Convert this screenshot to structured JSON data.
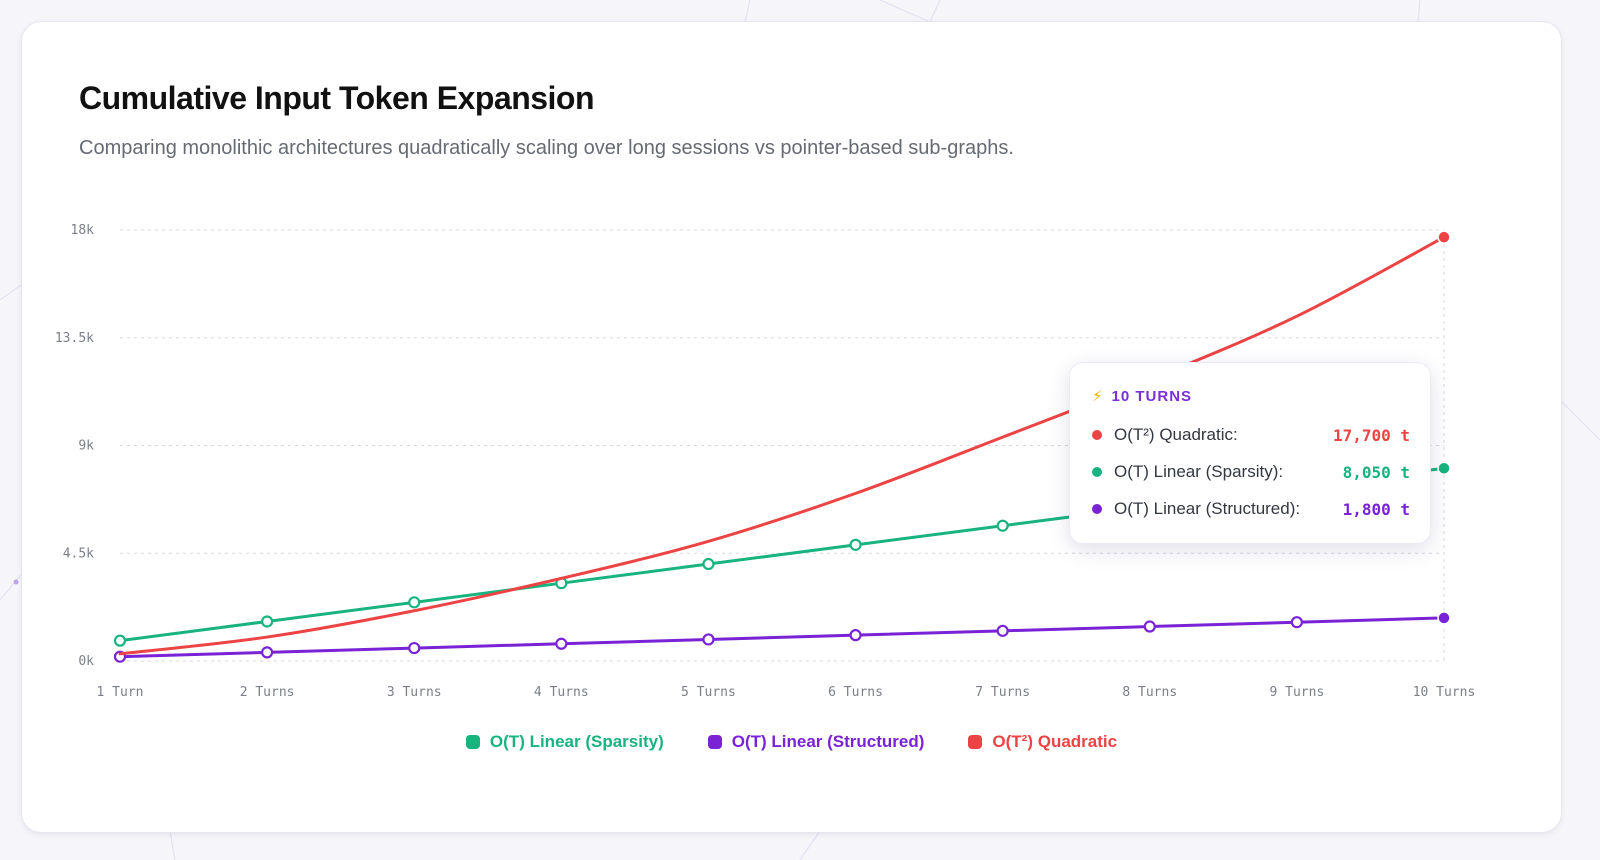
{
  "page": {
    "title": "Cumulative Input Token Expansion",
    "subtitle": "Comparing monolithic architectures quadratically scaling over long sessions vs pointer-based sub-graphs."
  },
  "colors": {
    "quadratic": "#ec4444",
    "sparsity": "#19b47e",
    "structured": "#7a22d6",
    "grid": "#d7d9df"
  },
  "chart_data": {
    "type": "line",
    "x": [
      "1 Turn",
      "2 Turns",
      "3 Turns",
      "4 Turns",
      "5 Turns",
      "6 Turns",
      "7 Turns",
      "8 Turns",
      "9 Turns",
      "10 Turns"
    ],
    "yticks": [
      "0k",
      "4.5k",
      "9k",
      "13.5k",
      "18k"
    ],
    "ylim": [
      0,
      18000
    ],
    "grid": true,
    "legend_position": "bottom",
    "series": [
      {
        "name": "O(T) Linear (Sparsity)",
        "key": "sparsity",
        "values": [
          850,
          1650,
          2450,
          3250,
          4050,
          4850,
          5650,
          6450,
          7250,
          8050
        ]
      },
      {
        "name": "O(T) Linear (Structured)",
        "key": "structured",
        "values": [
          180,
          360,
          540,
          720,
          900,
          1080,
          1260,
          1440,
          1620,
          1800
        ]
      },
      {
        "name": "O(T²) Quadratic",
        "key": "quadratic",
        "values": [
          300,
          1000,
          2100,
          3450,
          5000,
          7000,
          9350,
          11750,
          14400,
          17700
        ]
      }
    ]
  },
  "tooltip": {
    "icon": "lightning-icon",
    "bolt": "⚡",
    "header": "10 TURNS",
    "rows": [
      {
        "label": "O(T²) Quadratic:",
        "value": "17,700 t",
        "key": "quadratic"
      },
      {
        "label": "O(T) Linear (Sparsity):",
        "value": "8,050 t",
        "key": "sparsity"
      },
      {
        "label": "O(T) Linear (Structured):",
        "value": "1,800 t",
        "key": "structured"
      }
    ]
  },
  "legend": [
    {
      "label": "O(T) Linear (Sparsity)",
      "key": "sparsity"
    },
    {
      "label": "O(T) Linear (Structured)",
      "key": "structured"
    },
    {
      "label": "O(T²) Quadratic",
      "key": "quadratic"
    }
  ]
}
